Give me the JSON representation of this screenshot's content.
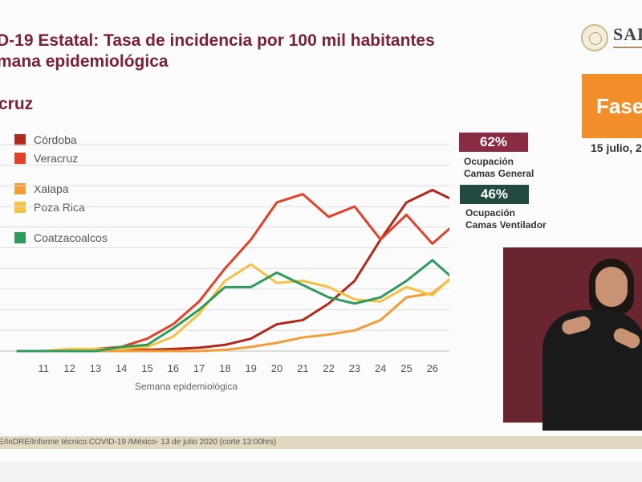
{
  "header": {
    "title_line1": "D-19 Estatal: Tasa de incidencia por 100 mil habitantes",
    "title_line2": "mana epidemiológica",
    "region": "cruz"
  },
  "logo": {
    "text": "SAL",
    "icon": "government-seal-icon"
  },
  "fase": {
    "label": "Fase",
    "color": "#f18e28",
    "date": "15 julio, 2"
  },
  "stats": [
    {
      "value": "62%",
      "label_line1": "Ocupación",
      "label_line2": "Camas General",
      "color": "#8b2a43"
    },
    {
      "value": "46%",
      "label_line1": "Ocupación",
      "label_line2": "Camas Ventilador",
      "color": "#234a40"
    }
  ],
  "chart_data": {
    "type": "line",
    "x": [
      10,
      11,
      12,
      13,
      14,
      15,
      16,
      17,
      18,
      19,
      20,
      21,
      22,
      23,
      24,
      25,
      26,
      27
    ],
    "xlabel": "Semana epidemiológica",
    "ylim": [
      0,
      50
    ],
    "grid": true,
    "legend_position": "top-left",
    "series": [
      {
        "name": "Córdoba",
        "color": "#b0281a",
        "values": [
          0,
          0,
          0,
          0,
          0.2,
          0.3,
          0.5,
          0.8,
          1.5,
          3,
          6.5,
          7.5,
          11.5,
          17,
          27,
          36,
          39,
          36
        ]
      },
      {
        "name": "Veracruz",
        "color": "#e2412a",
        "values": [
          0,
          0,
          0.3,
          0.5,
          1,
          3,
          6.5,
          12,
          20,
          27,
          36,
          38,
          32.5,
          35,
          27,
          33,
          26,
          31.5
        ]
      },
      {
        "name": "Xalapa",
        "color": "#f29d37",
        "values": [
          0,
          0,
          0,
          0,
          0,
          0,
          0,
          0,
          0.3,
          1,
          2,
          3.3,
          4,
          5,
          7.5,
          13,
          14,
          19
        ]
      },
      {
        "name": "Poza Rica",
        "color": "#f6c142",
        "values": [
          0,
          0,
          0.5,
          0.5,
          0.5,
          1,
          3.5,
          9,
          17,
          21,
          16.5,
          17,
          15.5,
          12.5,
          12,
          15.5,
          13.5,
          19.5
        ]
      },
      {
        "name": "Coatzacoalcos",
        "color": "#2e9b5c",
        "values": [
          0,
          0,
          0,
          0,
          1,
          1.5,
          5.5,
          10,
          15.5,
          15.5,
          19,
          16,
          13,
          11.5,
          13,
          17,
          22,
          16.5
        ]
      }
    ]
  },
  "footer": {
    "source": "E/InDRE/Informe técnico.COVID-19 /México- 13 de julio 2020 (corte 13:00hrs)"
  }
}
